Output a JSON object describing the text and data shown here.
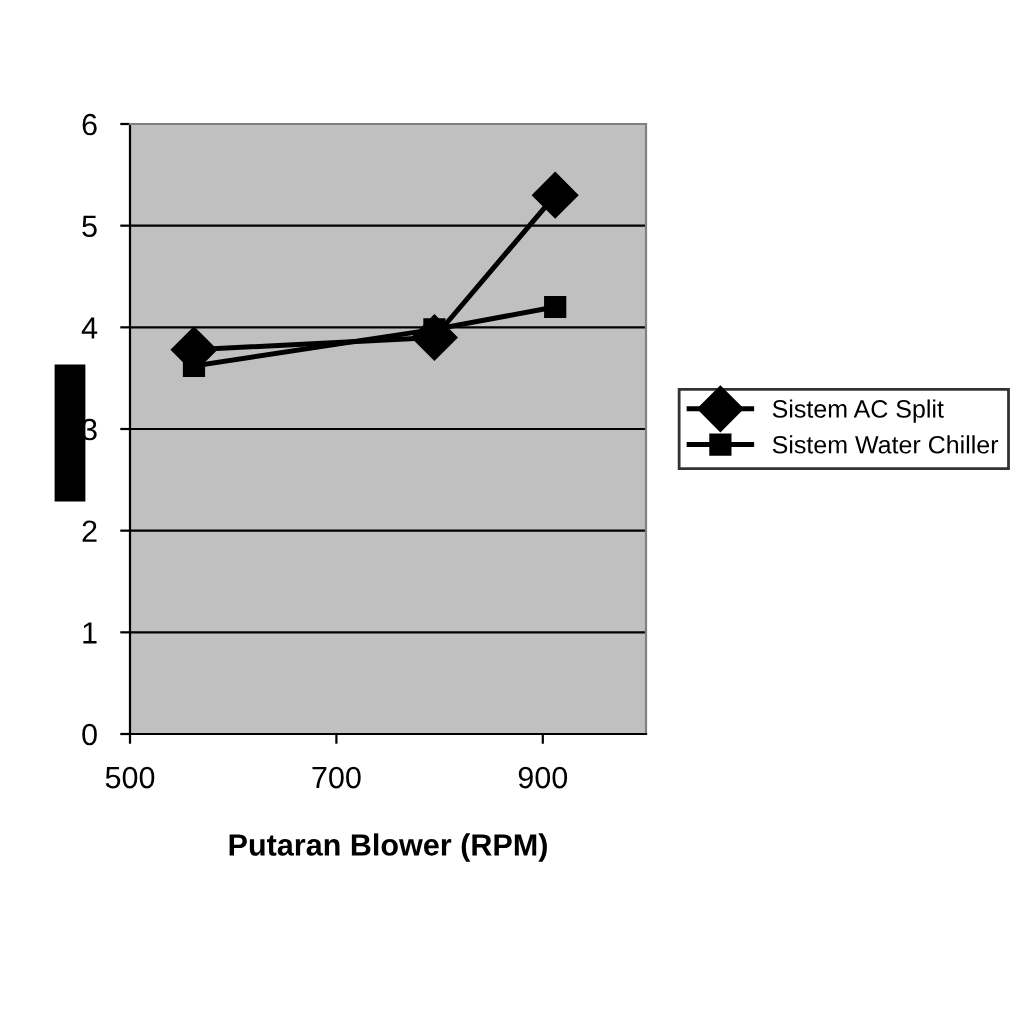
{
  "chart_data": {
    "type": "line",
    "xlabel": "Putaran Blower (RPM)",
    "xlim": [
      500,
      1000
    ],
    "xticks": [
      500,
      700,
      900
    ],
    "ylim": [
      0,
      6
    ],
    "yticks": [
      0,
      1,
      2,
      3,
      4,
      5,
      6
    ],
    "grid": "y",
    "legend": "right",
    "line_style": "solid",
    "series": [
      {
        "name": "Sistem AC Split",
        "color": "#000000",
        "marker": "diamond",
        "x": [
          562,
          795,
          912
        ],
        "values": [
          3.78,
          3.9,
          5.3
        ]
      },
      {
        "name": "Sistem Water Chiller",
        "color": "#000000",
        "marker": "square",
        "x": [
          562,
          795,
          912
        ],
        "values": [
          3.62,
          3.98,
          4.2
        ]
      }
    ]
  }
}
